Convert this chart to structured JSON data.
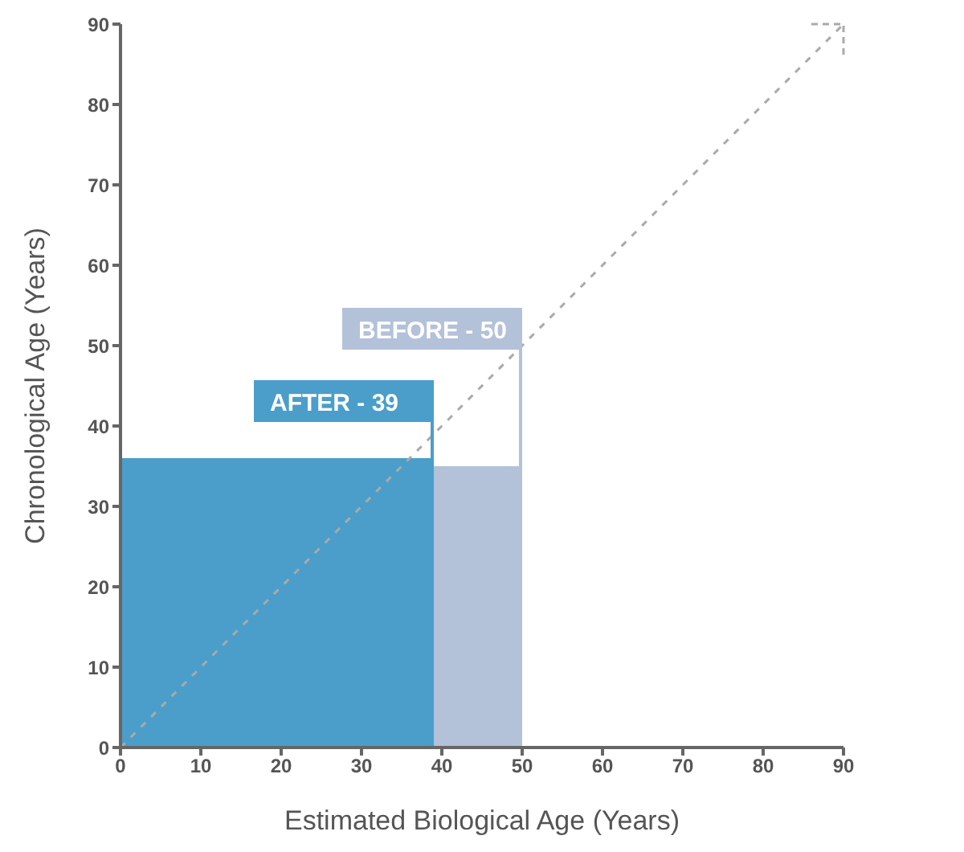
{
  "chart_data": {
    "type": "area",
    "xlabel": "Estimated Biological Age (Years)",
    "ylabel": "Chronological Age (Years)",
    "series": [
      {
        "color": "#b3c1d9",
        "x": [
          0,
          50
        ],
        "values": [
          35,
          35
        ]
      },
      {
        "color": "#4a9ec9",
        "x": [
          0,
          39
        ],
        "values": [
          36,
          36
        ]
      },
      {
        "type": "line",
        "color": "#aaaaaa",
        "x": [
          0,
          90
        ],
        "values": [
          0,
          90
        ],
        "line_style": "dashed",
        "marker": "none"
      }
    ],
    "annotations": [
      {
        "text": "BEFORE - 50",
        "x": 50,
        "y": 49.5
      },
      {
        "text": "AFTER - 39",
        "x": 39,
        "y": 40.5
      }
    ],
    "xlim": [
      0,
      90
    ],
    "ylim": [
      0,
      90
    ],
    "xticks": [
      0,
      10,
      20,
      30,
      40,
      50,
      60,
      70,
      80,
      90
    ],
    "yticks": [
      0,
      10,
      20,
      30,
      40,
      50,
      60,
      70,
      80,
      90
    ],
    "grid": false,
    "legend": false
  }
}
